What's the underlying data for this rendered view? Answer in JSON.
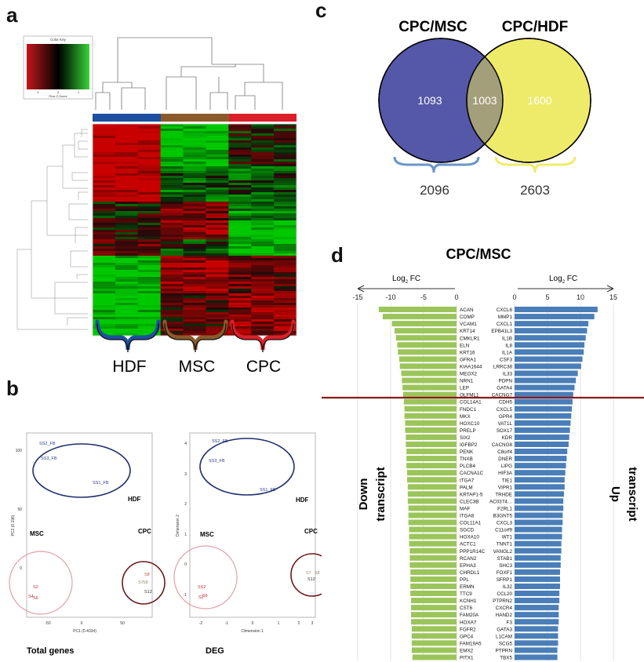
{
  "panels": {
    "a": "a",
    "b": "b",
    "c": "c",
    "d": "d"
  },
  "heatmap": {
    "color_key_title": "Color Key",
    "color_key_sub": "Row Z-Score",
    "color_key_ticks": [
      "-1",
      "0",
      "1"
    ],
    "groups": [
      "HDF",
      "MSC",
      "CPC"
    ],
    "group_colors": [
      "#1f4fa0",
      "#8b5a2b",
      "#d9202a"
    ]
  },
  "pca": {
    "left": {
      "caption": "Total genes",
      "xlabel": "PC1 (0.4334)",
      "ylabel": "PC2 (0.196)",
      "xticks": [
        "-50",
        "0",
        "50"
      ],
      "yticks": [
        "100",
        "50",
        "0"
      ],
      "points": [
        "SS2_FB",
        "SS3_FB",
        "SS1_FB",
        "S2",
        "S4",
        "S6",
        "S7",
        "S8",
        "S12"
      ],
      "groups": [
        "HDF",
        "MSC",
        "CPC"
      ]
    },
    "right": {
      "caption": "DEG",
      "xlabel": "Dimension 1",
      "ylabel": "Dimension 2",
      "xticks": [
        "-2",
        "-1",
        "0",
        "1",
        "2",
        "3"
      ],
      "yticks": [
        "4",
        "3",
        "2",
        "1",
        "0",
        "-1"
      ],
      "points": [
        "SS2_FB",
        "SS3_FB",
        "SS1_FB",
        "SS2",
        "S2",
        "S6",
        "S7",
        "S8",
        "S12"
      ],
      "groups": [
        "HDF",
        "MSC",
        "CPC"
      ]
    }
  },
  "venn": {
    "left_label": "CPC/MSC",
    "right_label": "CPC/HDF",
    "left_only": "1093",
    "overlap": "1003",
    "right_only": "1600",
    "left_total": "2096",
    "right_total": "2603",
    "colors": {
      "left": "#5558a8",
      "right": "#eeeb6a",
      "overlap": "#a39f7a"
    }
  },
  "chart_data": {
    "type": "bar",
    "title": "CPC/MSC",
    "left_axis_label": "Log",
    "left_axis_sub": "2",
    "left_axis_suffix": " FC",
    "right_axis_label": "Log",
    "right_axis_sub": "2",
    "right_axis_suffix": " FC",
    "left_ticks": [
      "-15",
      "-10",
      "-5",
      "0"
    ],
    "right_ticks": [
      "0",
      "5",
      "10",
      "15"
    ],
    "down_label_line1": "Down",
    "down_label_line2": "transcript",
    "up_label_line1": "Up",
    "up_label_line2": "transcript",
    "down_color": "#9bc55a",
    "up_color": "#4a7eb8",
    "xlim_down": [
      -15,
      0
    ],
    "xlim_up": [
      0,
      15
    ],
    "down_genes": [
      "ACAN",
      "COMP",
      "VCAM1",
      "KRT14",
      "CMKLR1",
      "ELN",
      "KRT16",
      "GFRA1",
      "KIAA1644",
      "MEOX2",
      "NRN1",
      "LEP",
      "OLFML1",
      "COL14A1",
      "FNDC1",
      "MKX",
      "HOXC10",
      "PRELP",
      "SIX2",
      "IGFBP2",
      "PENK",
      "TNXB",
      "PLCB4",
      "CACNA1C",
      "ITGA7",
      "PALM",
      "KRTAP1-5",
      "CLEC3B",
      "MAF",
      "ITGA8",
      "COL11A1",
      "SGCD",
      "HOXA10",
      "ACTC1",
      "PPP1R14C",
      "RCAN2",
      "EPHA3",
      "CHRDL1",
      "PPL",
      "ERMN",
      "TTC9",
      "KCNH1",
      "CST6",
      "FAM20A",
      "HOXA7",
      "FGFR2",
      "GPC4",
      "FAM19A5",
      "EMX2",
      "PITX1"
    ],
    "down_values": [
      -11.8,
      -11.2,
      -9.8,
      -9.4,
      -9.2,
      -9.0,
      -8.9,
      -8.7,
      -8.6,
      -8.4,
      -8.3,
      -8.2,
      -8.1,
      -8.0,
      -7.9,
      -7.9,
      -7.8,
      -7.8,
      -7.7,
      -7.7,
      -7.6,
      -7.6,
      -7.6,
      -7.5,
      -7.5,
      -7.4,
      -7.4,
      -7.4,
      -7.3,
      -7.3,
      -7.3,
      -7.2,
      -7.2,
      -7.2,
      -7.1,
      -7.1,
      -7.1,
      -7.0,
      -7.0,
      -7.0,
      -7.0,
      -6.9,
      -6.9,
      -6.9,
      -6.9,
      -6.8,
      -6.8,
      -6.8,
      -6.8,
      -6.7
    ],
    "up_genes": [
      "CXCL6",
      "MMP1",
      "CXCL1",
      "EPB41L3",
      "IL1B",
      "IL8",
      "IL1A",
      "CSF3",
      "LRRC38",
      "IL33",
      "PDPN",
      "GATA4",
      "CACNG7",
      "CDH5",
      "CXCL5",
      "GPR4",
      "VAT1L",
      "SOX17",
      "KDR",
      "CACNG8",
      "C8orf4",
      "DNER",
      "LIPG",
      "HIF3A",
      "TIE1",
      "VIPR1",
      "TRHDE",
      "AC0374…",
      "F2RL1",
      "B3GNT5",
      "CXCL3",
      "C11orf9",
      "WT1",
      "TNNT1",
      "VANGL2",
      "STAB1",
      "SHC3",
      "FOXF1",
      "SFRP1",
      "IL32",
      "CCL20",
      "PTPRN2",
      "CXCR4",
      "HAND2",
      "F3",
      "GATA3",
      "L1CAM",
      "SCG5",
      "PTPRN",
      "TBX5"
    ],
    "up_values": [
      12.6,
      12.1,
      11.2,
      11.0,
      10.8,
      10.6,
      10.5,
      10.3,
      10.1,
      9.6,
      9.3,
      9.1,
      8.9,
      8.8,
      8.7,
      8.6,
      8.5,
      8.4,
      8.3,
      8.2,
      8.0,
      7.9,
      7.8,
      7.7,
      7.6,
      7.6,
      7.5,
      7.4,
      7.4,
      7.3,
      7.3,
      7.2,
      7.2,
      7.1,
      7.1,
      7.0,
      7.0,
      6.9,
      6.9,
      6.9,
      6.8,
      6.8,
      6.7,
      6.7,
      6.7,
      6.6,
      6.6,
      6.6,
      6.5,
      6.5
    ]
  }
}
